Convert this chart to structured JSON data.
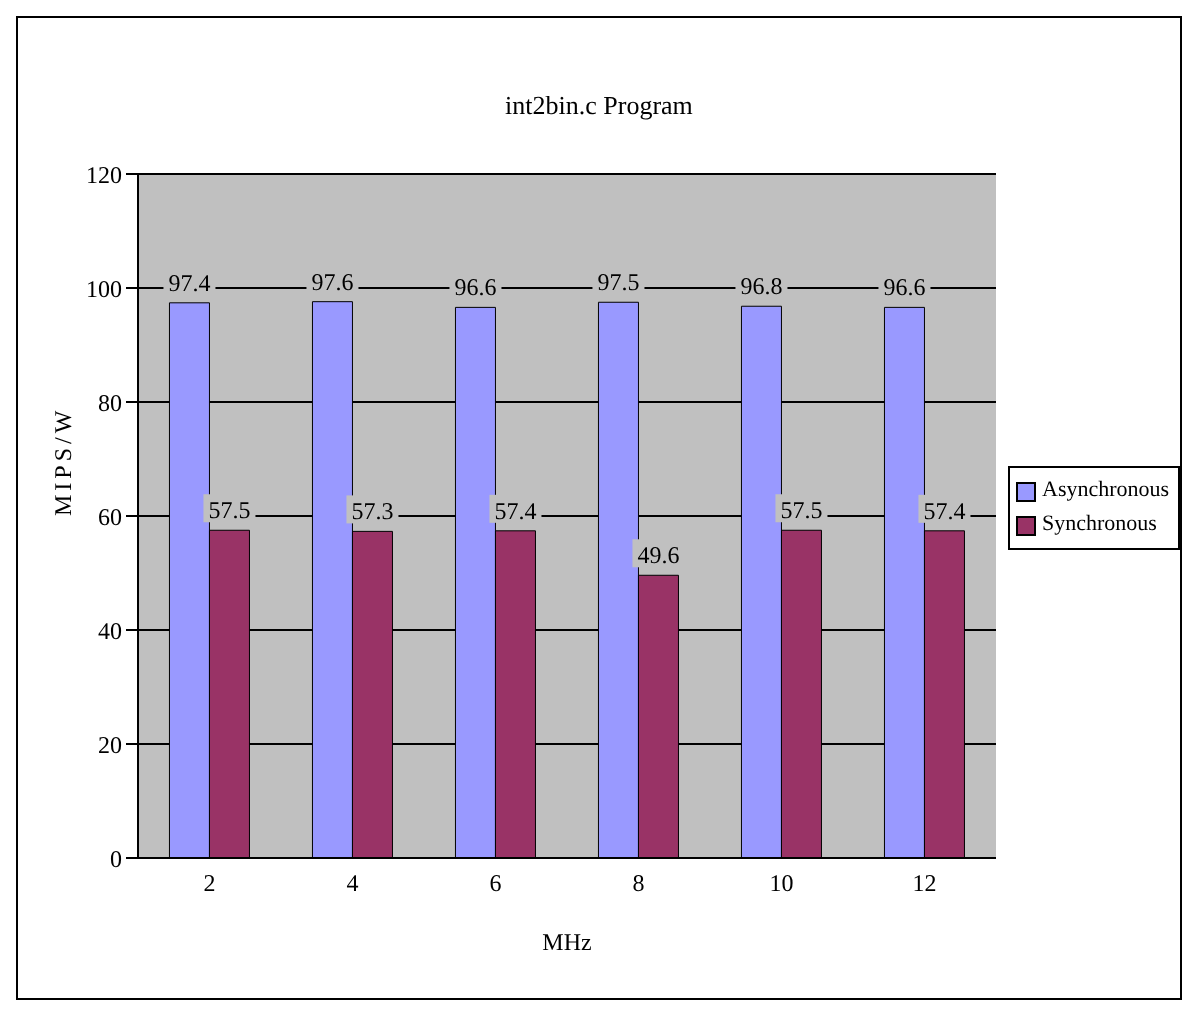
{
  "chart_data": {
    "type": "bar",
    "title": "int2bin.c Program",
    "xlabel": "MHz",
    "ylabel": "MIPS/W",
    "categories": [
      "2",
      "4",
      "6",
      "8",
      "10",
      "12"
    ],
    "series": [
      {
        "name": "Asynchronous",
        "color": "#9999ff",
        "values": [
          97.4,
          97.6,
          96.6,
          97.5,
          96.8,
          96.6
        ]
      },
      {
        "name": "Synchronous",
        "color": "#993366",
        "values": [
          57.5,
          57.3,
          57.4,
          49.6,
          57.5,
          57.4
        ]
      }
    ],
    "ylim": [
      0,
      120
    ],
    "yticks": [
      0,
      20,
      40,
      60,
      80,
      100,
      120
    ],
    "grid": "y",
    "legend": "right",
    "data_labels": true
  }
}
